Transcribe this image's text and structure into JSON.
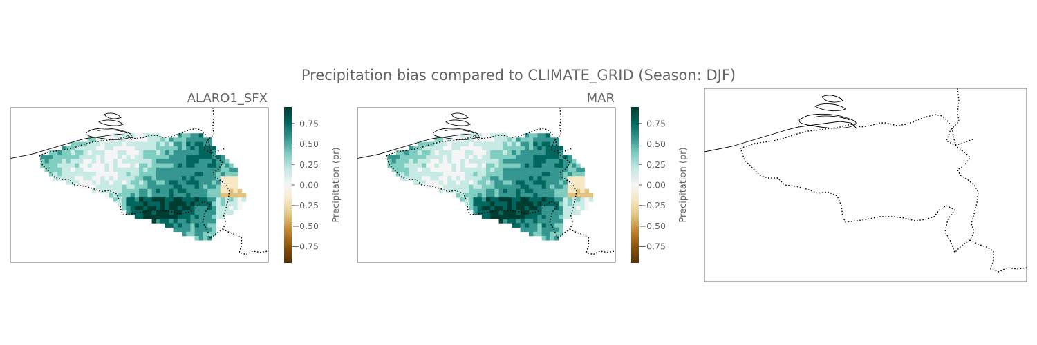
{
  "figure": {
    "title": "Precipitation bias compared to CLIMATE_GRID (Season: DJF)"
  },
  "panels": [
    {
      "title": "ALARO1_SFX",
      "has_field": true
    },
    {
      "title": "MAR",
      "has_field": true
    },
    {
      "title": "",
      "has_field": false
    }
  ],
  "colorbar": {
    "label": "Precipitation (pr)",
    "ticks": [
      "0.75",
      "0.50",
      "0.25",
      "0.00",
      "−0.25",
      "−0.50",
      "−0.75"
    ],
    "tick_values": [
      0.75,
      0.5,
      0.25,
      0.0,
      -0.25,
      -0.5,
      -0.75
    ],
    "range": [
      -0.95,
      0.95
    ],
    "colormap": "BrBG",
    "colors": [
      "#543005",
      "#8c510a",
      "#bf812d",
      "#dfc27d",
      "#f6e8c3",
      "#f5f5f5",
      "#c7eae5",
      "#80cdc1",
      "#35978f",
      "#01665e",
      "#003c30"
    ]
  },
  "colors": {
    "border": "#666666",
    "coastline": "#000000",
    "text": "#666666"
  }
}
